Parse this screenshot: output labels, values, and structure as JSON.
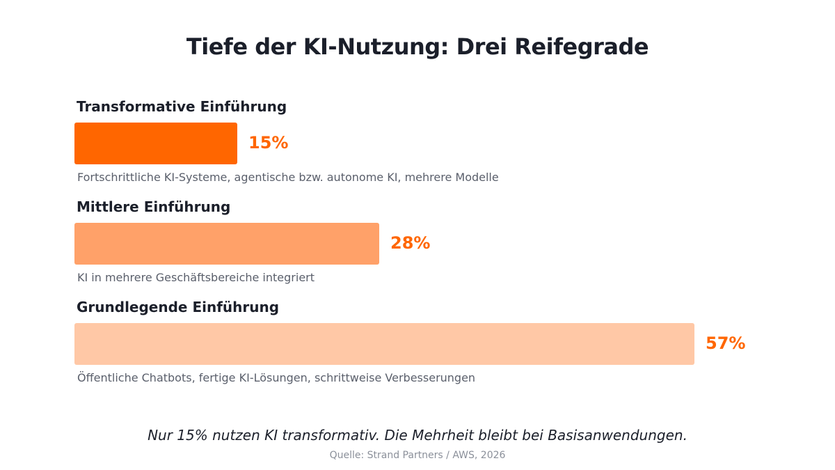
{
  "title": "Tiefe der KI-Nutzung: Drei Reifegrade",
  "colors": {
    "accent": "#ff6600",
    "bar_high": "#ff6600",
    "bar_mid": "#ffa169",
    "bar_low": "#ffc8a6",
    "text_dark": "#1b1f2a",
    "text_muted": "#5a5f6b"
  },
  "chart_data": {
    "type": "bar",
    "orientation": "horizontal",
    "xlim": [
      0,
      57
    ],
    "categories": [
      "Transformative Einführung",
      "Mittlere Einführung",
      "Grundlegende Einführung"
    ],
    "values": [
      15,
      28,
      57
    ],
    "value_labels": [
      "15%",
      "28%",
      "57%"
    ],
    "descriptions": [
      "Fortschrittliche KI-Systeme, agentische bzw. autonome KI, mehrere Modelle",
      "KI in mehrere Geschäftsbereiche integriert",
      "Öffentliche Chatbots, fertige KI-Lösungen, schrittweise Verbesserungen"
    ],
    "bar_colors": [
      "#ff6600",
      "#ffa169",
      "#ffc8a6"
    ]
  },
  "takeaway": "Nur 15% nutzen KI transformativ. Die Mehrheit bleibt bei Basisanwendungen.",
  "source": "Quelle: Strand Partners / AWS, 2026"
}
